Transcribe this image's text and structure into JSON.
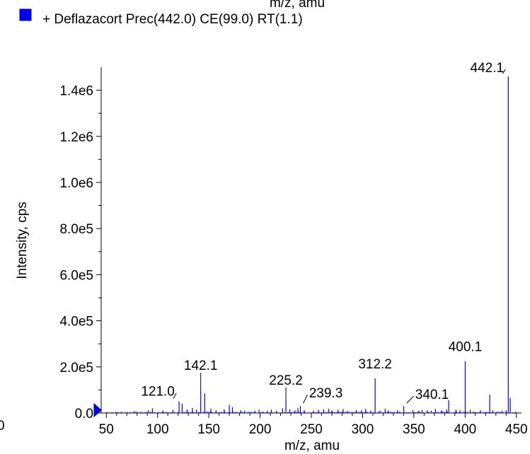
{
  "colors": {
    "series": "#0000ff",
    "axis": "#000000",
    "marker": "#0000ff"
  },
  "clipped_header": "m/z, amu",
  "clipped_left_label": "0",
  "chart_data": {
    "type": "bar",
    "xlabel": "m/z, amu",
    "ylabel": "Intensity, cps",
    "xlim": [
      45,
      455
    ],
    "ylim": [
      0,
      1500000
    ],
    "x_ticks": [
      50,
      100,
      150,
      200,
      250,
      300,
      350,
      400,
      450
    ],
    "y_ticks": [
      {
        "value": 0,
        "label": "0.0"
      },
      {
        "value": 200000,
        "label": "2.0e5"
      },
      {
        "value": 400000,
        "label": "4.0e5"
      },
      {
        "value": 600000,
        "label": "6.0e5"
      },
      {
        "value": 800000,
        "label": "8.0e5"
      },
      {
        "value": 1000000,
        "label": "1.0e6"
      },
      {
        "value": 1200000,
        "label": "1.2e6"
      },
      {
        "value": 1400000,
        "label": "1.4e6"
      }
    ],
    "series": [
      {
        "name": "+ Deflazacort Prec(442.0) CE(99.0) RT(1.1)",
        "x": [
          77.0,
          91.0,
          95.0,
          105.0,
          115.0,
          121.0,
          124.0,
          129.0,
          134.0,
          138.0,
          142.1,
          146.0,
          152.0,
          157.0,
          165.0,
          170.0,
          173.0,
          181.0,
          185.0,
          195.0,
          199.0,
          207.0,
          211.0,
          216.0,
          222.0,
          225.2,
          229.0,
          234.0,
          237.0,
          239.3,
          243.0,
          252.0,
          257.0,
          262.0,
          267.0,
          270.0,
          276.0,
          281.0,
          285.0,
          294.0,
          299.0,
          303.0,
          308.0,
          312.2,
          317.0,
          322.0,
          325.0,
          334.0,
          340.1,
          349.0,
          355.0,
          358.0,
          363.0,
          367.0,
          371.0,
          377.0,
          382.0,
          384.0,
          391.0,
          395.0,
          400.1,
          405.0,
          415.0,
          424.0,
          427.0,
          436.0,
          440.0,
          442.1,
          444.0
        ],
        "y": [
          8000,
          12000,
          20000,
          10000,
          14000,
          50000,
          40000,
          16000,
          22000,
          15000,
          95000,
          85000,
          18000,
          12000,
          16000,
          35000,
          25000,
          12000,
          9000,
          9000,
          14000,
          10000,
          15000,
          9000,
          20000,
          62000,
          16000,
          12000,
          20000,
          30000,
          12000,
          10000,
          14000,
          16000,
          18000,
          12000,
          14000,
          17000,
          9000,
          12000,
          12000,
          18000,
          11000,
          150000,
          10000,
          18000,
          11000,
          12000,
          30000,
          12000,
          10000,
          13000,
          12000,
          10000,
          18000,
          12000,
          15000,
          55000,
          14000,
          12000,
          225000,
          13000,
          12000,
          80000,
          12000,
          10000,
          12000,
          1460000,
          65000
        ]
      }
    ],
    "annotations": [
      {
        "x": 121.0,
        "y": 50000,
        "text": "121.0"
      },
      {
        "x": 142.1,
        "y": 95000,
        "text": "142.1"
      },
      {
        "x": 225.2,
        "y": 62000,
        "text": "225.2"
      },
      {
        "x": 239.3,
        "y": 30000,
        "text": "239.3"
      },
      {
        "x": 312.2,
        "y": 150000,
        "text": "312.2"
      },
      {
        "x": 340.1,
        "y": 30000,
        "text": "340.1"
      },
      {
        "x": 400.1,
        "y": 225000,
        "text": "400.1"
      },
      {
        "x": 442.1,
        "y": 1460000,
        "text": "442.1"
      }
    ]
  }
}
